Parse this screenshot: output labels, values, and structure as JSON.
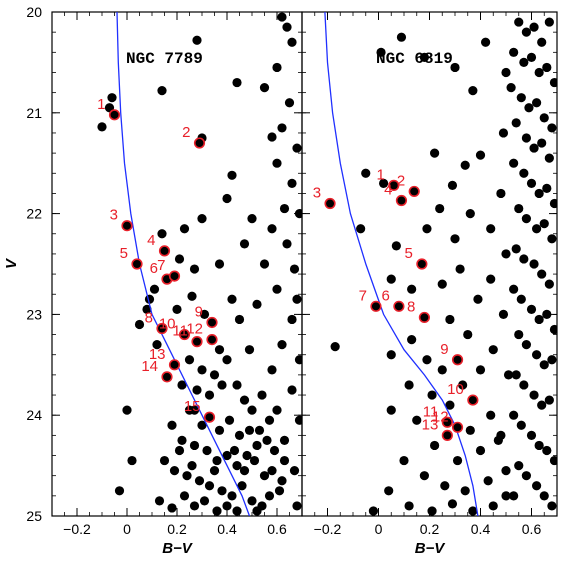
{
  "chart_data": [
    {
      "type": "scatter",
      "title": "NGC 7789",
      "xlabel": "B−V",
      "ylabel": "V",
      "xlim": [
        -0.3,
        0.7
      ],
      "ylim": [
        25,
        20
      ],
      "y_inverted": true,
      "x_ticks": [
        "−0.2",
        "0",
        "0.2",
        "0.4",
        "0.6"
      ],
      "y_ticks": [
        "20",
        "21",
        "22",
        "23",
        "24",
        "25"
      ],
      "colors": {
        "points": "#000000",
        "highlight": "#e8202a",
        "isochrone": "#2030ff"
      },
      "isochrone": [
        [
          -0.04,
          20.0
        ],
        [
          -0.035,
          20.5
        ],
        [
          -0.025,
          21.0
        ],
        [
          -0.01,
          21.5
        ],
        [
          0.015,
          22.0
        ],
        [
          0.05,
          22.5
        ],
        [
          0.1,
          23.0
        ],
        [
          0.16,
          23.3
        ],
        [
          0.21,
          23.55
        ],
        [
          0.26,
          23.8
        ],
        [
          0.31,
          24.05
        ],
        [
          0.36,
          24.3
        ],
        [
          0.41,
          24.55
        ],
        [
          0.46,
          24.8
        ],
        [
          0.49,
          25.0
        ]
      ],
      "highlighted": [
        {
          "label": "1",
          "x": -0.05,
          "y": 21.02
        },
        {
          "label": "2",
          "x": 0.29,
          "y": 21.3
        },
        {
          "label": "3",
          "x": 0.0,
          "y": 22.12
        },
        {
          "label": "4",
          "x": 0.15,
          "y": 22.37
        },
        {
          "label": "5",
          "x": 0.04,
          "y": 22.5
        },
        {
          "label": "6",
          "x": 0.16,
          "y": 22.65
        },
        {
          "label": "7",
          "x": 0.19,
          "y": 22.62
        },
        {
          "label": "8",
          "x": 0.14,
          "y": 23.14
        },
        {
          "label": "9",
          "x": 0.34,
          "y": 23.08
        },
        {
          "label": "10",
          "x": 0.23,
          "y": 23.2
        },
        {
          "label": "11",
          "x": 0.28,
          "y": 23.27
        },
        {
          "label": "12",
          "x": 0.34,
          "y": 23.25
        },
        {
          "label": "13",
          "x": 0.19,
          "y": 23.5
        },
        {
          "label": "14",
          "x": 0.16,
          "y": 23.62
        },
        {
          "label": "15",
          "x": 0.33,
          "y": 24.02
        }
      ],
      "points": [
        [
          -0.1,
          21.14
        ],
        [
          -0.07,
          20.95
        ],
        [
          -0.06,
          20.85
        ],
        [
          0.14,
          20.78
        ],
        [
          0.3,
          21.25
        ],
        [
          0.28,
          20.28
        ],
        [
          0.44,
          20.7
        ],
        [
          0.42,
          21.62
        ],
        [
          0.55,
          20.75
        ],
        [
          0.58,
          21.24
        ],
        [
          0.62,
          20.05
        ],
        [
          0.64,
          20.15
        ],
        [
          0.66,
          20.3
        ],
        [
          0.6,
          20.55
        ],
        [
          0.65,
          20.9
        ],
        [
          0.62,
          21.15
        ],
        [
          0.68,
          21.35
        ],
        [
          0.6,
          21.5
        ],
        [
          0.66,
          21.7
        ],
        [
          0.63,
          21.95
        ],
        [
          0.58,
          22.15
        ],
        [
          0.64,
          22.3
        ],
        [
          0.69,
          22.0
        ],
        [
          0.67,
          22.55
        ],
        [
          0.6,
          22.75
        ],
        [
          0.68,
          22.85
        ],
        [
          0.66,
          23.05
        ],
        [
          0.62,
          23.3
        ],
        [
          0.69,
          23.45
        ],
        [
          0.58,
          23.55
        ],
        [
          0.66,
          23.75
        ],
        [
          0.69,
          24.05
        ],
        [
          0.63,
          24.25
        ],
        [
          0.67,
          24.55
        ],
        [
          0.61,
          24.75
        ],
        [
          0.68,
          24.9
        ],
        [
          0.5,
          22.05
        ],
        [
          0.4,
          21.85
        ],
        [
          0.47,
          22.3
        ],
        [
          0.55,
          22.5
        ],
        [
          0.52,
          22.9
        ],
        [
          0.45,
          23.05
        ],
        [
          0.49,
          23.35
        ],
        [
          0.42,
          22.85
        ],
        [
          0.37,
          22.5
        ],
        [
          0.3,
          22.05
        ],
        [
          0.23,
          22.15
        ],
        [
          0.27,
          22.55
        ],
        [
          0.11,
          22.75
        ],
        [
          0.08,
          22.95
        ],
        [
          0.12,
          23.3
        ],
        [
          0.2,
          22.95
        ],
        [
          0.26,
          22.82
        ],
        [
          0.31,
          23.0
        ],
        [
          0.37,
          23.35
        ],
        [
          0.4,
          23.45
        ],
        [
          0.25,
          23.45
        ],
        [
          0.3,
          23.55
        ],
        [
          0.35,
          23.6
        ],
        [
          0.22,
          23.7
        ],
        [
          0.28,
          23.75
        ],
        [
          0.33,
          23.8
        ],
        [
          0.38,
          23.7
        ],
        [
          0.44,
          23.7
        ],
        [
          0.47,
          23.85
        ],
        [
          0.5,
          23.95
        ],
        [
          0.54,
          23.8
        ],
        [
          0.25,
          23.95
        ],
        [
          0.3,
          24.1
        ],
        [
          0.37,
          24.15
        ],
        [
          0.41,
          24.05
        ],
        [
          0.45,
          24.2
        ],
        [
          0.49,
          24.15
        ],
        [
          0.52,
          24.3
        ],
        [
          0.56,
          24.25
        ],
        [
          0.59,
          24.35
        ],
        [
          0.18,
          24.1
        ],
        [
          0.22,
          24.25
        ],
        [
          0.27,
          24.3
        ],
        [
          0.32,
          24.35
        ],
        [
          0.36,
          24.45
        ],
        [
          0.4,
          24.4
        ],
        [
          0.44,
          24.5
        ],
        [
          0.47,
          24.55
        ],
        [
          0.51,
          24.45
        ],
        [
          0.55,
          24.6
        ],
        [
          0.58,
          24.55
        ],
        [
          0.62,
          24.65
        ],
        [
          0.15,
          24.45
        ],
        [
          0.19,
          24.55
        ],
        [
          0.24,
          24.6
        ],
        [
          0.29,
          24.65
        ],
        [
          0.33,
          24.7
        ],
        [
          0.38,
          24.75
        ],
        [
          0.42,
          24.8
        ],
        [
          0.46,
          24.7
        ],
        [
          0.5,
          24.85
        ],
        [
          0.54,
          24.9
        ],
        [
          0.57,
          24.8
        ],
        [
          0.13,
          24.85
        ],
        [
          0.18,
          24.92
        ],
        [
          0.23,
          24.8
        ],
        [
          0.27,
          24.9
        ],
        [
          0.31,
          24.85
        ],
        [
          0.36,
          24.95
        ],
        [
          0.4,
          24.9
        ],
        [
          0.44,
          24.95
        ],
        [
          0.52,
          24.95
        ],
        [
          -0.03,
          24.75
        ],
        [
          0.02,
          24.45
        ],
        [
          0.0,
          23.95
        ],
        [
          0.05,
          23.1
        ],
        [
          0.09,
          22.85
        ],
        [
          0.14,
          22.2
        ],
        [
          0.21,
          22.45
        ],
        [
          0.27,
          23.95
        ],
        [
          0.21,
          24.35
        ],
        [
          0.26,
          24.5
        ],
        [
          0.35,
          24.55
        ],
        [
          0.43,
          24.35
        ],
        [
          0.48,
          24.4
        ],
        [
          0.53,
          24.15
        ],
        [
          0.57,
          24.05
        ],
        [
          0.6,
          23.95
        ],
        [
          0.63,
          24.45
        ]
      ]
    },
    {
      "type": "scatter",
      "title": "NGC 6819",
      "xlabel": "B−V",
      "ylabel": "",
      "xlim": [
        -0.3,
        0.7
      ],
      "ylim": [
        25,
        20
      ],
      "y_inverted": true,
      "x_ticks": [
        "−0.2",
        "0",
        "0.2",
        "0.4",
        "0.6"
      ],
      "y_ticks": [],
      "colors": {
        "points": "#000000",
        "highlight": "#e8202a",
        "isochrone": "#2030ff"
      },
      "isochrone": [
        [
          -0.21,
          20.0
        ],
        [
          -0.2,
          20.5
        ],
        [
          -0.18,
          21.0
        ],
        [
          -0.15,
          21.5
        ],
        [
          -0.11,
          22.0
        ],
        [
          -0.05,
          22.5
        ],
        [
          0.02,
          23.0
        ],
        [
          0.1,
          23.35
        ],
        [
          0.18,
          23.6
        ],
        [
          0.25,
          23.85
        ],
        [
          0.3,
          24.1
        ],
        [
          0.34,
          24.4
        ],
        [
          0.37,
          24.7
        ],
        [
          0.39,
          25.0
        ]
      ],
      "highlighted": [
        {
          "label": "1",
          "x": 0.06,
          "y": 21.72
        },
        {
          "label": "2",
          "x": 0.14,
          "y": 21.78
        },
        {
          "label": "3",
          "x": -0.19,
          "y": 21.9
        },
        {
          "label": "4",
          "x": 0.09,
          "y": 21.87
        },
        {
          "label": "5",
          "x": 0.17,
          "y": 22.5
        },
        {
          "label": "6",
          "x": 0.08,
          "y": 22.92
        },
        {
          "label": "7",
          "x": -0.01,
          "y": 22.92
        },
        {
          "label": "8",
          "x": 0.18,
          "y": 23.03
        },
        {
          "label": "9",
          "x": 0.31,
          "y": 23.45
        },
        {
          "label": "10",
          "x": 0.37,
          "y": 23.85
        },
        {
          "label": "11",
          "x": 0.27,
          "y": 24.07
        },
        {
          "label": "12",
          "x": 0.31,
          "y": 24.12
        },
        {
          "label": "13",
          "x": 0.27,
          "y": 24.2
        }
      ],
      "points": [
        [
          0.01,
          20.4
        ],
        [
          0.09,
          20.25
        ],
        [
          0.18,
          20.45
        ],
        [
          0.3,
          20.55
        ],
        [
          0.42,
          20.3
        ],
        [
          0.37,
          20.78
        ],
        [
          -0.05,
          21.6
        ],
        [
          0.02,
          21.7
        ],
        [
          0.22,
          21.4
        ],
        [
          0.29,
          21.72
        ],
        [
          0.34,
          21.52
        ],
        [
          0.4,
          21.42
        ],
        [
          0.36,
          22.0
        ],
        [
          0.44,
          22.15
        ],
        [
          0.3,
          22.25
        ],
        [
          0.24,
          21.95
        ],
        [
          0.19,
          22.15
        ],
        [
          0.07,
          22.32
        ],
        [
          -0.07,
          22.15
        ],
        [
          0.05,
          22.65
        ],
        [
          0.13,
          22.75
        ],
        [
          0.25,
          22.7
        ],
        [
          0.32,
          22.55
        ],
        [
          0.39,
          22.85
        ],
        [
          0.44,
          22.65
        ],
        [
          0.28,
          23.05
        ],
        [
          0.35,
          23.2
        ],
        [
          0.13,
          23.25
        ],
        [
          0.05,
          23.4
        ],
        [
          -0.17,
          23.32
        ],
        [
          0.19,
          23.45
        ],
        [
          0.25,
          23.55
        ],
        [
          0.33,
          23.7
        ],
        [
          0.4,
          23.55
        ],
        [
          0.45,
          23.35
        ],
        [
          0.12,
          23.7
        ],
        [
          0.21,
          23.8
        ],
        [
          0.28,
          23.9
        ],
        [
          0.44,
          24.0
        ],
        [
          0.36,
          24.15
        ],
        [
          0.05,
          23.95
        ],
        [
          0.15,
          24.05
        ],
        [
          0.22,
          24.3
        ],
        [
          0.31,
          24.45
        ],
        [
          0.4,
          24.35
        ],
        [
          0.47,
          24.25
        ],
        [
          0.1,
          24.45
        ],
        [
          0.18,
          24.6
        ],
        [
          0.26,
          24.7
        ],
        [
          0.34,
          24.75
        ],
        [
          0.43,
          24.65
        ],
        [
          0.5,
          24.55
        ],
        [
          0.04,
          24.75
        ],
        [
          0.12,
          24.9
        ],
        [
          0.21,
          24.95
        ],
        [
          0.29,
          24.88
        ],
        [
          0.37,
          24.95
        ],
        [
          0.45,
          24.9
        ],
        [
          0.53,
          24.8
        ],
        [
          -0.02,
          24.95
        ],
        [
          0.55,
          20.1
        ],
        [
          0.58,
          20.2
        ],
        [
          0.61,
          20.15
        ],
        [
          0.64,
          20.3
        ],
        [
          0.67,
          20.1
        ],
        [
          0.53,
          20.4
        ],
        [
          0.57,
          20.5
        ],
        [
          0.6,
          20.45
        ],
        [
          0.63,
          20.6
        ],
        [
          0.66,
          20.55
        ],
        [
          0.69,
          20.7
        ],
        [
          0.52,
          20.75
        ],
        [
          0.56,
          20.85
        ],
        [
          0.59,
          20.95
        ],
        [
          0.62,
          20.9
        ],
        [
          0.65,
          21.05
        ],
        [
          0.68,
          21.15
        ],
        [
          0.54,
          21.1
        ],
        [
          0.58,
          21.25
        ],
        [
          0.61,
          21.35
        ],
        [
          0.64,
          21.3
        ],
        [
          0.67,
          21.45
        ],
        [
          0.53,
          21.5
        ],
        [
          0.57,
          21.6
        ],
        [
          0.6,
          21.7
        ],
        [
          0.63,
          21.8
        ],
        [
          0.66,
          21.75
        ],
        [
          0.69,
          21.9
        ],
        [
          0.55,
          21.95
        ],
        [
          0.58,
          22.05
        ],
        [
          0.62,
          22.15
        ],
        [
          0.65,
          22.1
        ],
        [
          0.68,
          22.25
        ],
        [
          0.54,
          22.35
        ],
        [
          0.57,
          22.45
        ],
        [
          0.61,
          22.5
        ],
        [
          0.64,
          22.6
        ],
        [
          0.67,
          22.7
        ],
        [
          0.53,
          22.75
        ],
        [
          0.56,
          22.85
        ],
        [
          0.6,
          22.95
        ],
        [
          0.63,
          23.05
        ],
        [
          0.66,
          23.0
        ],
        [
          0.69,
          23.15
        ],
        [
          0.55,
          23.2
        ],
        [
          0.58,
          23.3
        ],
        [
          0.62,
          23.4
        ],
        [
          0.65,
          23.5
        ],
        [
          0.68,
          23.45
        ],
        [
          0.54,
          23.6
        ],
        [
          0.57,
          23.7
        ],
        [
          0.61,
          23.8
        ],
        [
          0.64,
          23.9
        ],
        [
          0.67,
          23.85
        ],
        [
          0.53,
          24.0
        ],
        [
          0.56,
          24.1
        ],
        [
          0.6,
          24.2
        ],
        [
          0.63,
          24.3
        ],
        [
          0.66,
          24.35
        ],
        [
          0.69,
          24.45
        ],
        [
          0.55,
          24.5
        ],
        [
          0.58,
          24.6
        ],
        [
          0.62,
          24.7
        ],
        [
          0.65,
          24.8
        ],
        [
          0.68,
          24.9
        ],
        [
          0.5,
          20.6
        ],
        [
          0.49,
          21.2
        ],
        [
          0.48,
          21.8
        ],
        [
          0.5,
          22.4
        ],
        [
          0.49,
          23.0
        ],
        [
          0.51,
          23.6
        ],
        [
          0.48,
          24.2
        ],
        [
          0.5,
          24.8
        ]
      ]
    }
  ]
}
